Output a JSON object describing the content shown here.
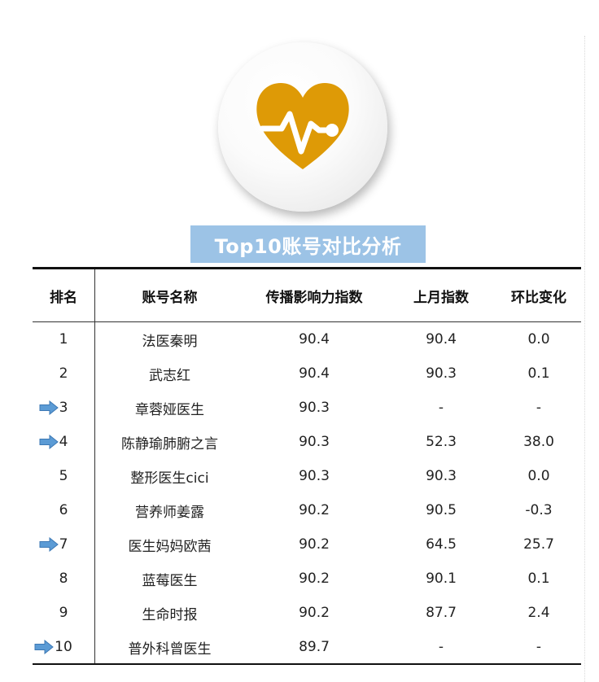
{
  "title": "Top10账号对比分析",
  "logo": {
    "icon": "heart-pulse-icon",
    "heart_color": "#de9a06",
    "line_color": "#ffffff"
  },
  "colors": {
    "title_bg": "#9cc3e6",
    "positive_change": "#d03a3a",
    "negative_change": "#3aa84a",
    "arrow": "#5b9bd5"
  },
  "table": {
    "headers": {
      "rank": "排名",
      "name": "账号名称",
      "index": "传播影响力指数",
      "last_month": "上月指数",
      "change": "环比变化"
    },
    "rows": [
      {
        "rank": "1",
        "name": "法医秦明",
        "index": "90.4",
        "last_month": "90.4",
        "change": "0.0",
        "trend": "flat",
        "new_entry": false
      },
      {
        "rank": "2",
        "name": "武志红",
        "index": "90.4",
        "last_month": "90.3",
        "change": "0.1",
        "trend": "up",
        "new_entry": false
      },
      {
        "rank": "3",
        "name": "章蓉娅医生",
        "index": "90.3",
        "last_month": "-",
        "change": "-",
        "trend": "flat",
        "new_entry": true
      },
      {
        "rank": "4",
        "name": "陈静瑜肺腑之言",
        "index": "90.3",
        "last_month": "52.3",
        "change": "38.0",
        "trend": "up",
        "new_entry": true
      },
      {
        "rank": "5",
        "name": "整形医生cici",
        "index": "90.3",
        "last_month": "90.3",
        "change": "0.0",
        "trend": "flat",
        "new_entry": false
      },
      {
        "rank": "6",
        "name": "营养师姜露",
        "index": "90.2",
        "last_month": "90.5",
        "change": "-0.3",
        "trend": "down",
        "new_entry": false
      },
      {
        "rank": "7",
        "name": "医生妈妈欧茜",
        "index": "90.2",
        "last_month": "64.5",
        "change": "25.7",
        "trend": "up",
        "new_entry": true
      },
      {
        "rank": "8",
        "name": "蓝莓医生",
        "index": "90.2",
        "last_month": "90.1",
        "change": "0.1",
        "trend": "up",
        "new_entry": false
      },
      {
        "rank": "9",
        "name": "生命时报",
        "index": "90.2",
        "last_month": "87.7",
        "change": "2.4",
        "trend": "up",
        "new_entry": false
      },
      {
        "rank": "10",
        "name": "普外科曾医生",
        "index": "89.7",
        "last_month": "-",
        "change": "-",
        "trend": "flat",
        "new_entry": true
      }
    ]
  }
}
